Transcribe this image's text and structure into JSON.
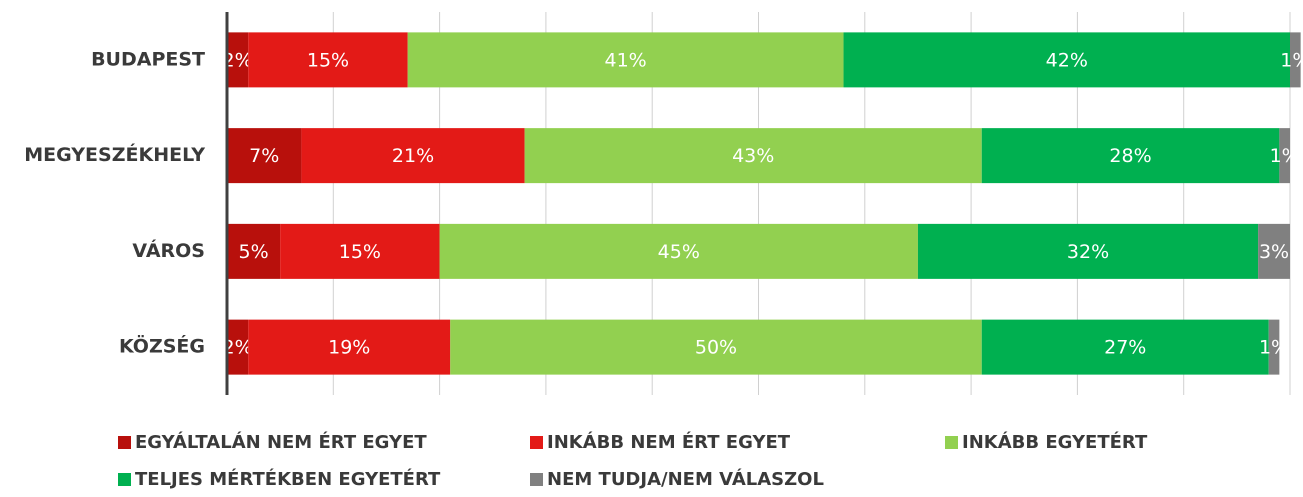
{
  "chart_data": {
    "type": "stacked-barh",
    "categories": [
      "BUDAPEST",
      "MEGYESZÉKHELY",
      "VÁROS",
      "KÖZSÉG"
    ],
    "series": [
      {
        "name": "EGYÁLTALÁN NEM ÉRT EGYET",
        "color": "#b8100c",
        "values": [
          2,
          7,
          5,
          2
        ],
        "value_labels": [
          "2%",
          "7%",
          "5%",
          "2%"
        ]
      },
      {
        "name": "INKÁBB NEM ÉRT EGYET",
        "color": "#e31a17",
        "values": [
          15,
          21,
          15,
          19
        ],
        "value_labels": [
          "15%",
          "21%",
          "15%",
          "19%"
        ]
      },
      {
        "name": "INKÁBB EGYETÉRT",
        "color": "#92d050",
        "values": [
          41,
          43,
          45,
          50
        ],
        "value_labels": [
          "41%",
          "43%",
          "45%",
          "50%"
        ]
      },
      {
        "name": "TELJES MÉRTÉKBEN EGYETÉRT",
        "color": "#00b050",
        "values": [
          42,
          28,
          32,
          27
        ],
        "value_labels": [
          "42%",
          "28%",
          "32%",
          "27%"
        ]
      },
      {
        "name": "NEM TUDJA/NEM VÁLASZOL",
        "color": "#808080",
        "values": [
          1,
          1,
          3,
          1
        ],
        "value_labels": [
          "1%",
          "1%",
          "3%",
          "1%"
        ]
      }
    ],
    "xlim": [
      0,
      100
    ],
    "xticks": [
      0,
      10,
      20,
      30,
      40,
      50,
      60,
      70,
      80,
      90,
      100
    ],
    "grid": true
  }
}
